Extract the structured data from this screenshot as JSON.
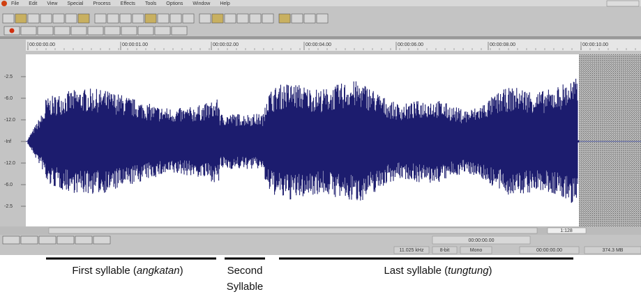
{
  "menu": [
    "File",
    "Edit",
    "View",
    "Special",
    "Process",
    "Effects",
    "Tools",
    "Options",
    "Window",
    "Help"
  ],
  "ruler": [
    "00:00:00.00",
    "00:00:01.00",
    "00:00:02.00",
    "00:00:04.00",
    "00:00:06.00",
    "00:00:08.00",
    "00:00:10.00"
  ],
  "amplitude_labels": [
    "-2.5",
    "-6.0",
    "-12.0",
    "-Inf",
    "-12.0",
    "-6.0",
    "-2.5"
  ],
  "zoom": "1:128",
  "status": {
    "position": "00:00:00.00",
    "sample_rate": "11.025 kHz",
    "bit_depth": "8-bit",
    "channels": "Mono",
    "time": "00:00:00.00",
    "free_space": "374.3 MB"
  },
  "captions": {
    "first": {
      "before": "First syllable (",
      "italic": "angkatan",
      "after": ")"
    },
    "second": {
      "line1": "Second",
      "line2": "Syllable"
    },
    "last": {
      "before": "Last syllable (",
      "italic": "tungtung",
      "after": ")"
    }
  }
}
